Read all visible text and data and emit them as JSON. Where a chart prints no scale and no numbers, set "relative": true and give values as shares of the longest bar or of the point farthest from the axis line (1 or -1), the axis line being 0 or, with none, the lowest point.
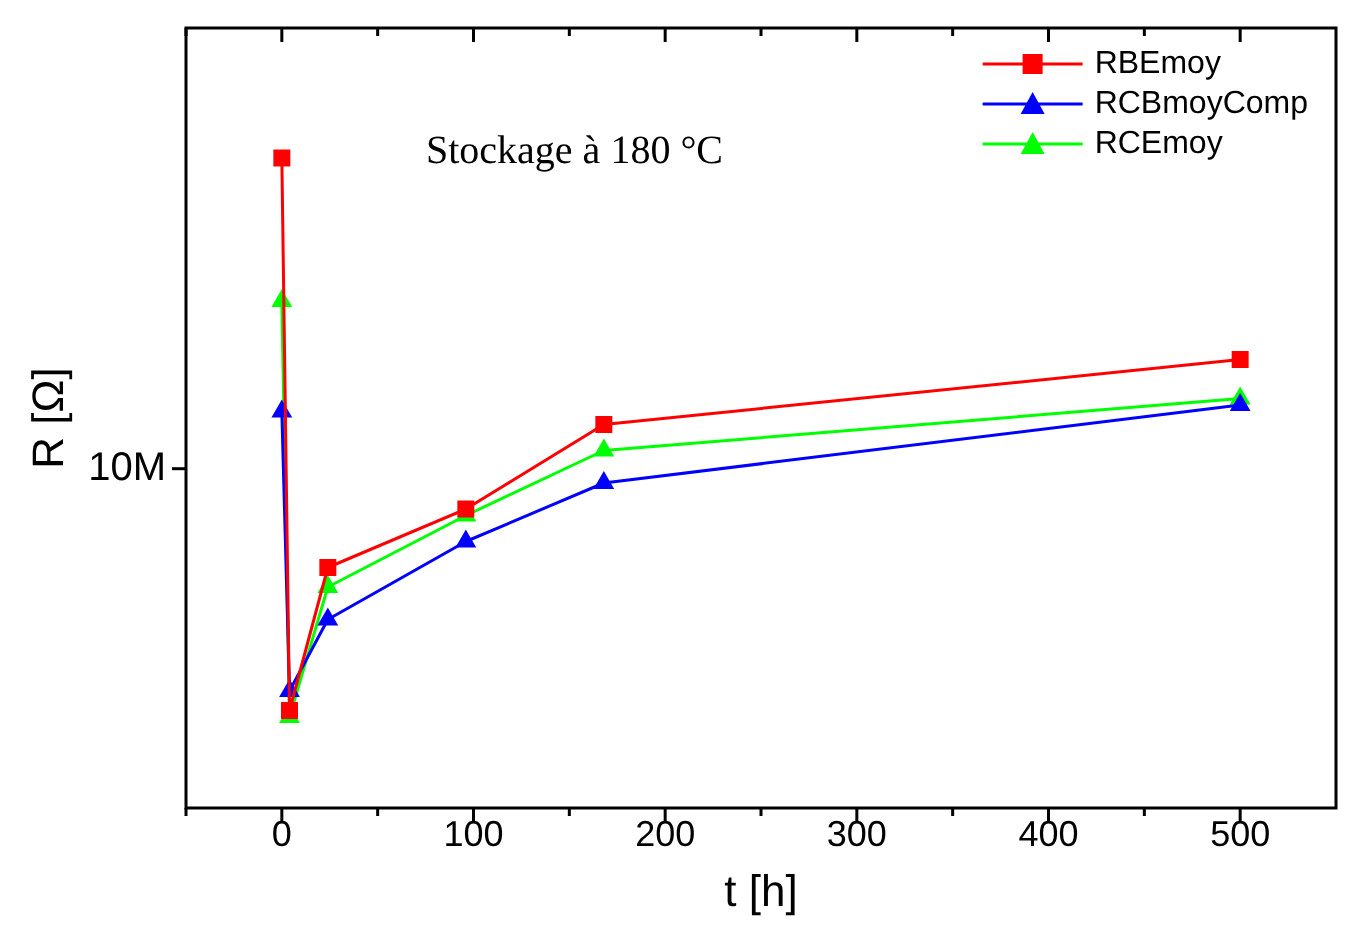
{
  "chart_data": {
    "type": "line",
    "relative": true,
    "xlabel": "t [h]",
    "ylabel": "R [Ω]",
    "x": [
      0,
      4,
      24,
      96,
      168,
      500
    ],
    "xlim": [
      -50,
      550
    ],
    "xticks": [
      {
        "value": -50,
        "label": null
      },
      0,
      {
        "value": 50,
        "label": null
      },
      100,
      {
        "value": 150,
        "label": null
      },
      200,
      {
        "value": 250,
        "label": null
      },
      300,
      {
        "value": 350,
        "label": null
      },
      400,
      {
        "value": 450,
        "label": null
      },
      500
    ],
    "legend": "top right",
    "grid": false,
    "annotations": [
      {
        "text": "Stockage à 180 °C"
      },
      "10M"
    ],
    "series": [
      {
        "name": "RBEmoy",
        "color": "#ff0000",
        "marker": "square",
        "values": [
          1,
          0.15,
          0.37,
          0.46,
          0.59,
          0.69
        ]
      },
      {
        "name": "RCBmoyComp",
        "color": "#0000ff",
        "marker": "triangle",
        "values": [
          0.61,
          0.18,
          0.29,
          0.41,
          0.5,
          0.62
        ]
      },
      {
        "name": "RCEmoy",
        "color": "#00ff00",
        "marker": "triangle",
        "values": [
          0.78,
          0.14,
          0.34,
          0.45,
          0.55,
          0.63
        ]
      }
    ]
  }
}
